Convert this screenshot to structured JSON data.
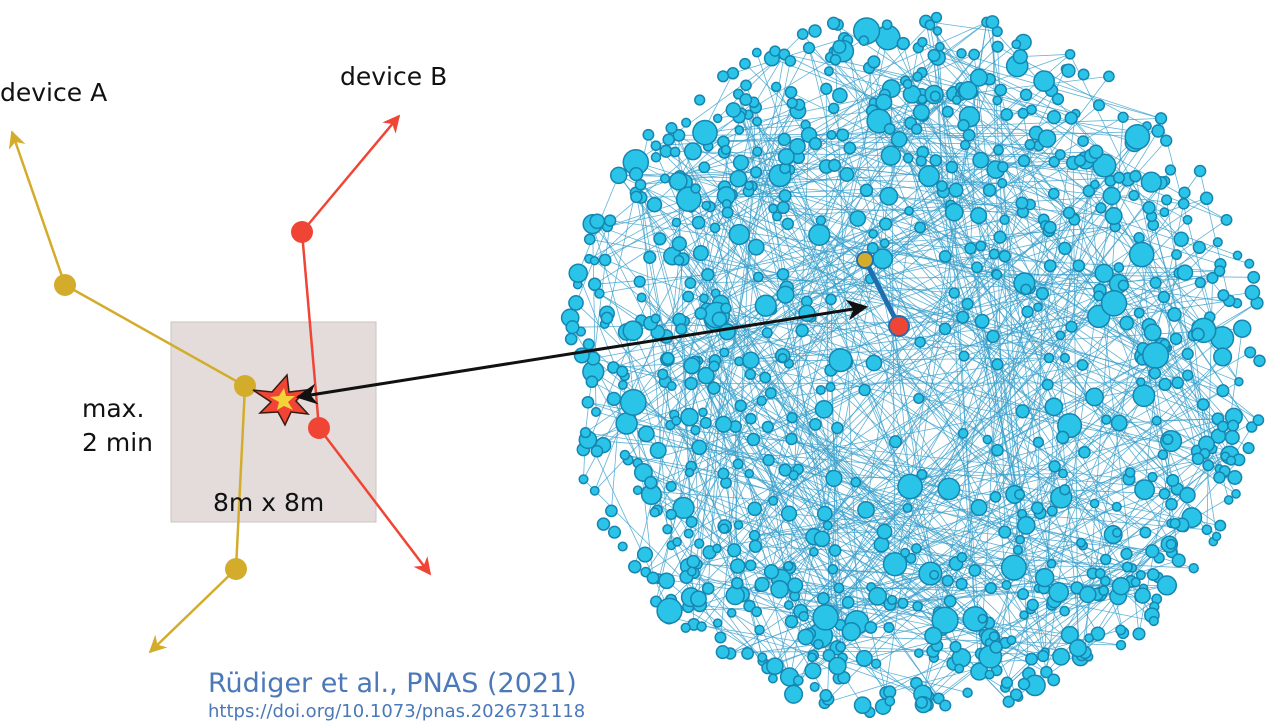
{
  "labels": {
    "device_a": "device A",
    "device_b": "device B",
    "max_line1": "max.",
    "max_line2": "2 min",
    "area": "8m x 8m"
  },
  "citation": {
    "title": "Rüdiger et al., PNAS (2021)",
    "doi": "https://doi.org/10.1073/pnas.2026731118"
  },
  "colors": {
    "device_a": "#d4ac2b",
    "device_b": "#f04535",
    "network_node": "#29c4e8",
    "network_node_border": "#1685b0",
    "network_edge": "#3aa0cc",
    "contact_area": "#e3dcda",
    "arrow": "#111111",
    "citation": "#4a78b8"
  },
  "icons": {
    "contact_event": "explosion-star-icon"
  }
}
